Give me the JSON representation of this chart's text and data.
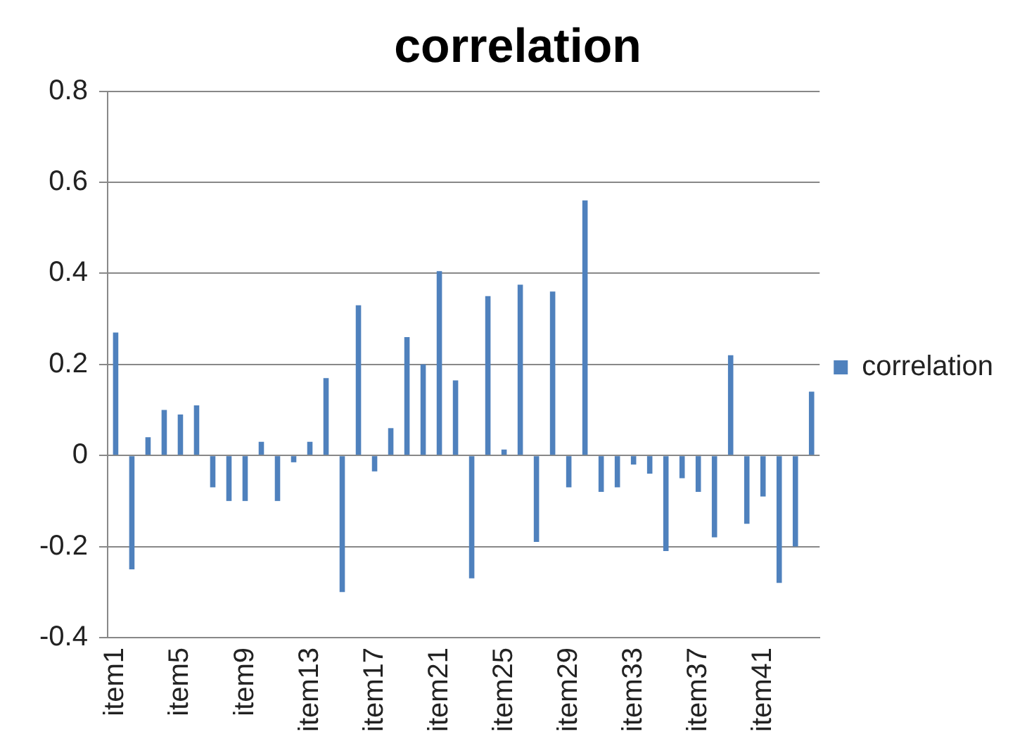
{
  "chart_data": {
    "type": "bar",
    "title": "correlation",
    "categories": [
      "item1",
      null,
      null,
      null,
      "item5",
      null,
      null,
      null,
      "item9",
      null,
      null,
      null,
      "item13",
      null,
      null,
      null,
      "item17",
      null,
      null,
      null,
      "item21",
      null,
      null,
      null,
      "item25",
      null,
      null,
      null,
      "item29",
      null,
      null,
      null,
      "item33",
      null,
      null,
      null,
      "item37",
      null,
      null,
      null,
      "item41",
      null,
      null,
      null
    ],
    "series": [
      {
        "name": "correlation",
        "color": "#4f81bd",
        "values": [
          0.27,
          -0.25,
          0.04,
          0.1,
          0.09,
          0.11,
          -0.07,
          -0.1,
          -0.1,
          0.03,
          -0.1,
          -0.015,
          0.03,
          0.17,
          -0.3,
          0.33,
          -0.035,
          0.06,
          0.26,
          0.2,
          0.405,
          0.165,
          -0.27,
          0.35,
          0.013,
          0.375,
          -0.19,
          0.36,
          -0.07,
          0.56,
          -0.08,
          -0.07,
          -0.02,
          -0.04,
          -0.21,
          -0.05,
          -0.08,
          -0.18,
          0.22,
          -0.15,
          -0.09,
          -0.28,
          -0.2,
          0.14
        ]
      }
    ],
    "ylim": [
      -0.4,
      0.8
    ],
    "yticks": [
      -0.4,
      -0.2,
      0,
      0.2,
      0.4,
      0.6,
      0.8
    ],
    "grid": "y",
    "legend": "right"
  }
}
